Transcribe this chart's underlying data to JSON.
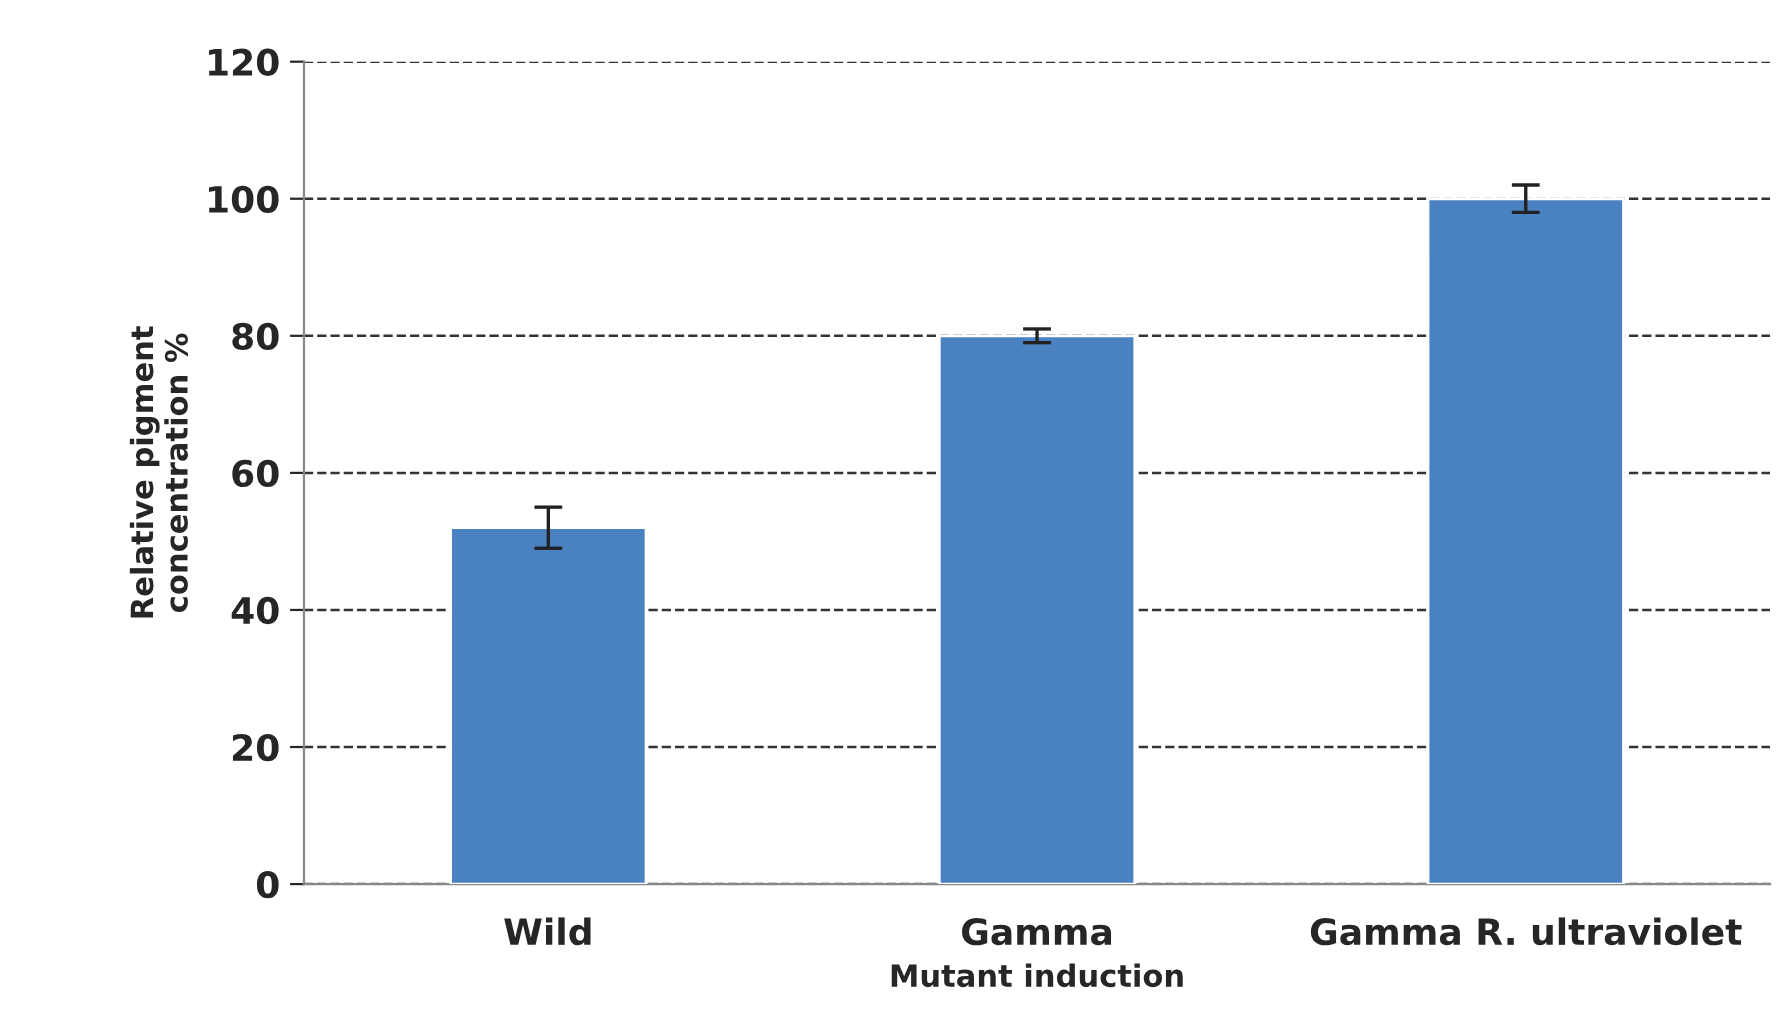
{
  "chart_data": {
    "type": "bar",
    "xlabel": "Mutant induction",
    "ylabel": "Relative pigment\nconcentration %",
    "categories": [
      "Wild",
      "Gamma",
      "Gamma R. ultraviolet"
    ],
    "values": [
      52,
      80,
      100
    ],
    "errors": [
      3,
      1,
      2
    ],
    "color": "#4a81c0",
    "ylim": [
      0,
      120
    ],
    "yticks": [
      0,
      20,
      40,
      60,
      80,
      100,
      120
    ],
    "grid": "y",
    "line_style": "dashed"
  }
}
